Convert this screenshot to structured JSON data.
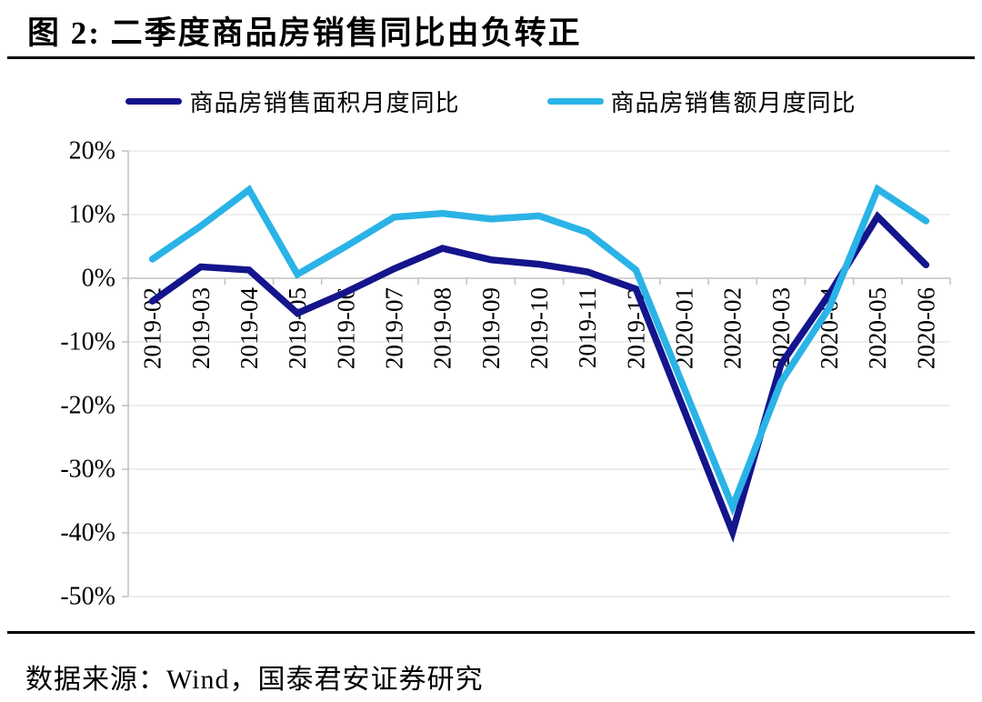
{
  "title": "图 2:  二季度商品房销售同比由负转正",
  "footer": {
    "source_label": "数据来源：Wind，国泰君安证券研究"
  },
  "colors": {
    "series_area": "#14148C",
    "series_value": "#2AB3E6",
    "gridline": "#E4E4E4",
    "axis": "#C4C4C4",
    "text": "#000000",
    "rule": "#000000"
  },
  "chart_data": {
    "type": "line",
    "categories": [
      "2019-02",
      "2019-03",
      "2019-04",
      "2019-05",
      "2019-06",
      "2019-07",
      "2019-08",
      "2019-09",
      "2019-10",
      "2019-11",
      "2019-12",
      "2020-01",
      "2020-02",
      "2020-03",
      "2020-04",
      "2020-05",
      "2020-06"
    ],
    "series": [
      {
        "name": "商品房销售面积月度同比",
        "color": "#14148C",
        "values": [
          -3.6,
          1.8,
          1.3,
          -5.5,
          -2.2,
          1.5,
          4.7,
          2.9,
          2.2,
          1.0,
          -1.7,
          -20.8,
          -39.9,
          -13.5,
          -2.5,
          9.7,
          2.1
        ]
      },
      {
        "name": "商品房销售额月度同比",
        "color": "#2AB3E6",
        "values": [
          3.0,
          8.2,
          13.9,
          0.6,
          5.0,
          9.6,
          10.2,
          9.3,
          9.8,
          7.2,
          1.3,
          -17.3,
          -35.9,
          -16.3,
          -4.6,
          14.0,
          9.0
        ]
      }
    ],
    "y_ticks": [
      20,
      10,
      0,
      -10,
      -20,
      -30,
      -40,
      -50
    ],
    "y_tick_labels": [
      "20%",
      "10%",
      "0%",
      "-10%",
      "-20%",
      "-30%",
      "-40%",
      "-50%"
    ],
    "ylim": [
      -50,
      20
    ],
    "grid": true,
    "legend_position": "top",
    "x_label_rotation": -90
  }
}
